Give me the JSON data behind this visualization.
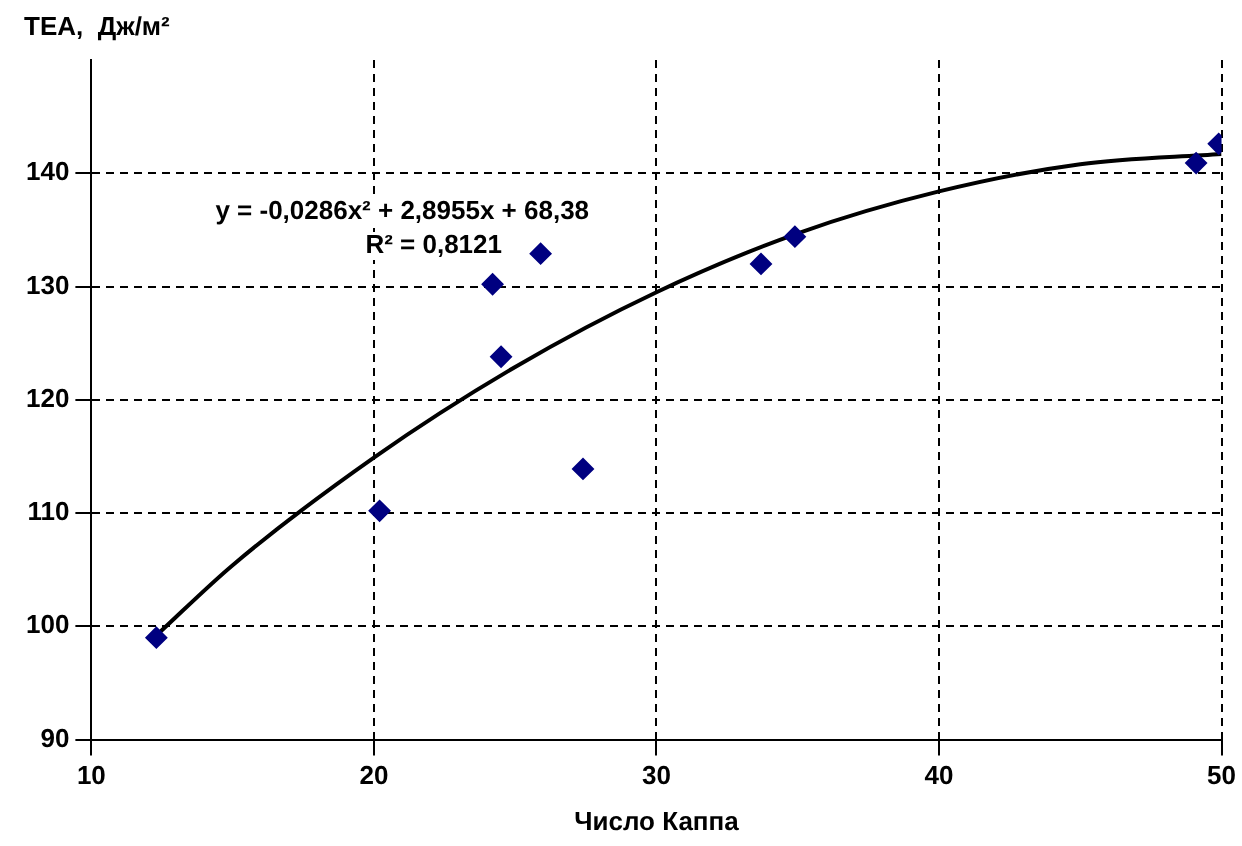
{
  "chart_data": {
    "type": "scatter",
    "xlabel": "Число Каппа",
    "ylabel": "ТЕА,  Дж/м²",
    "xlim": [
      10,
      50
    ],
    "xticks": [
      10,
      20,
      30,
      40,
      50
    ],
    "ylim": [
      90,
      150
    ],
    "yticks": [
      90,
      100,
      110,
      120,
      130,
      140
    ],
    "grid": true,
    "legend": false,
    "marker": "diamond",
    "annotations": [
      "y = -0,0286x² + 2,8955x + 68,38",
      "R² = 0,8121"
    ],
    "series": [
      {
        "color": "#000080",
        "x": [
          12.3,
          20.2,
          24.2,
          24.5,
          25.9,
          27.4,
          33.7,
          34.9,
          49.1,
          49.9
        ],
        "values": [
          99,
          110.2,
          130.2,
          123.8,
          132.9,
          113.9,
          132,
          134.4,
          140.9,
          142.6
        ]
      },
      {
        "type": "line",
        "color": "#000000",
        "marker": "none",
        "x": [
          12.3,
          15,
          20,
          25,
          30,
          35,
          40,
          45,
          50
        ],
        "values": [
          99.2,
          105.4,
          114.9,
          122.9,
          129.5,
          134.7,
          138.4,
          140.8,
          141.7
        ]
      }
    ]
  }
}
